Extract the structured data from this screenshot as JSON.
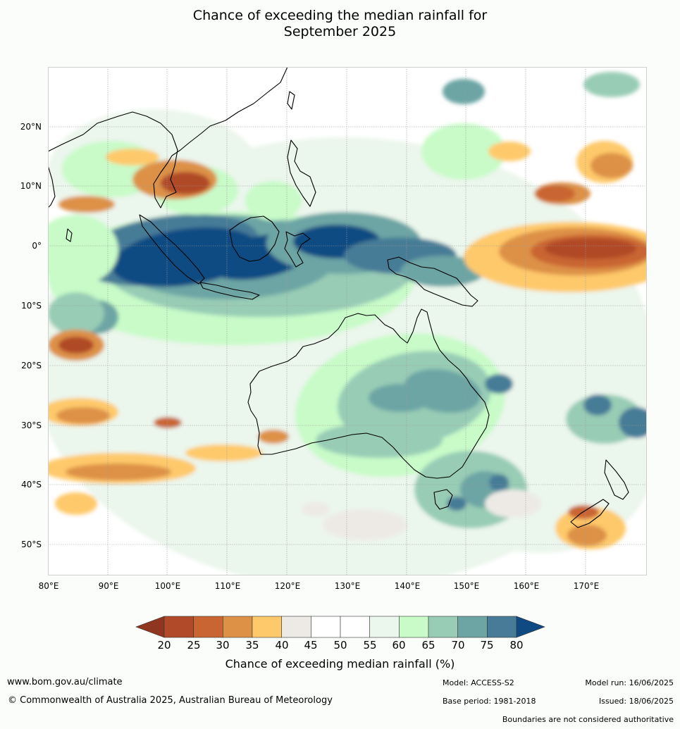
{
  "title_line1": "Chance of exceeding the median rainfall for",
  "title_line2": "September 2025",
  "latitude_labels": [
    "20°N",
    "10°N",
    "0°",
    "10°S",
    "20°S",
    "30°S",
    "40°S",
    "50°S"
  ],
  "longitude_labels": [
    "80°E",
    "90°E",
    "100°E",
    "110°E",
    "120°E",
    "130°E",
    "140°E",
    "150°E",
    "160°E",
    "170°E"
  ],
  "colorbar": {
    "ticks": [
      "20",
      "25",
      "30",
      "35",
      "40",
      "45",
      "50",
      "55",
      "60",
      "65",
      "70",
      "75",
      "80"
    ],
    "colors": [
      "#8f3520",
      "#b04a28",
      "#c96533",
      "#dd9147",
      "#fec96a",
      "#edeae6",
      "#ffffff",
      "#ffffff",
      "#ebf6ec",
      "#c8fbc8",
      "#98ccb5",
      "#6ca5a4",
      "#477b97",
      "#0f4b82"
    ],
    "label": "Chance of exceeding median rainfall (%)"
  },
  "footer": {
    "website": "www.bom.gov.au/climate",
    "copyright": "© Commonwealth of Australia 2025, Australian Bureau of Meteorology",
    "model": "Model: ACCESS-S2",
    "base_period": "Base period: 1981-2018",
    "model_run": "Model run: 16/06/2025",
    "issued": "Issued: 18/06/2025",
    "boundaries": "Boundaries are not considered authoritative"
  }
}
